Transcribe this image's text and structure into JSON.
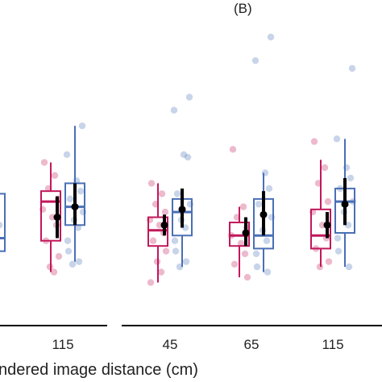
{
  "chart_data": {
    "type": "box",
    "panel_label": "(B)",
    "xlabel": "ndered image distance (cm)",
    "ylim": [
      0,
      1
    ],
    "colors": {
      "pink": "#c2185b",
      "blue": "#4a6fb5",
      "mean": "#000000"
    },
    "tick_labels": [
      "115",
      "45",
      "65",
      "115"
    ],
    "groups": [
      {
        "panel": "left",
        "category": "",
        "boxes": [
          {
            "series": "blue",
            "q1": 0.18,
            "median": 0.23,
            "q3": 0.4,
            "whisker_low": 0.1,
            "whisker_high": 0.4,
            "points": [
              0.2,
              0.28,
              0.35
            ]
          }
        ]
      },
      {
        "panel": "left",
        "category": "115",
        "boxes": [
          {
            "series": "pink",
            "q1": 0.22,
            "median": 0.37,
            "q3": 0.41,
            "whisker_low": 0.1,
            "whisker_high": 0.52,
            "mean": 0.31,
            "mean_low": 0.23,
            "mean_high": 0.39,
            "points": [
              0.52,
              0.47,
              0.42,
              0.38,
              0.34,
              0.31,
              0.28,
              0.22,
              0.16,
              0.12,
              0.1
            ]
          },
          {
            "series": "blue",
            "q1": 0.28,
            "median": 0.35,
            "q3": 0.44,
            "whisker_low": 0.14,
            "whisker_high": 0.66,
            "mean": 0.35,
            "mean_low": 0.28,
            "mean_high": 0.44,
            "points": [
              0.66,
              0.55,
              0.45,
              0.41,
              0.38,
              0.33,
              0.3,
              0.27,
              0.22,
              0.18,
              0.14,
              0.13
            ]
          }
        ]
      },
      {
        "panel": "right",
        "category": "45",
        "boxes": [
          {
            "series": "pink",
            "q1": 0.2,
            "median": 0.26,
            "q3": 0.31,
            "whisker_low": 0.06,
            "whisker_high": 0.44,
            "mean": 0.28,
            "mean_low": 0.24,
            "mean_high": 0.32,
            "points": [
              0.44,
              0.4,
              0.36,
              0.33,
              0.3,
              0.28,
              0.25,
              0.22,
              0.18,
              0.14,
              0.1,
              0.06
            ]
          },
          {
            "series": "blue",
            "q1": 0.24,
            "median": 0.33,
            "q3": 0.38,
            "whisker_low": 0.12,
            "whisker_high": 0.41,
            "mean": 0.34,
            "mean_low": 0.27,
            "mean_high": 0.42,
            "points": [
              0.77,
              0.72,
              0.55,
              0.54,
              0.4,
              0.36,
              0.3,
              0.27,
              0.22,
              0.18,
              0.14,
              0.12
            ]
          }
        ]
      },
      {
        "panel": "right",
        "category": "65",
        "boxes": [
          {
            "series": "pink",
            "q1": 0.2,
            "median": 0.24,
            "q3": 0.29,
            "whisker_low": 0.08,
            "whisker_high": 0.35,
            "mean": 0.25,
            "mean_low": 0.2,
            "mean_high": 0.31,
            "points": [
              0.57,
              0.35,
              0.31,
              0.27,
              0.24,
              0.21,
              0.17,
              0.13,
              0.08
            ]
          },
          {
            "series": "blue",
            "q1": 0.19,
            "median": 0.24,
            "q3": 0.38,
            "whisker_low": 0.1,
            "whisker_high": 0.48,
            "mean": 0.32,
            "mean_low": 0.24,
            "mean_high": 0.41,
            "points": [
              1.0,
              0.91,
              0.48,
              0.42,
              0.36,
              0.31,
              0.26,
              0.22,
              0.17,
              0.12,
              0.1
            ]
          }
        ]
      },
      {
        "panel": "right",
        "category": "115",
        "boxes": [
          {
            "series": "pink",
            "q1": 0.19,
            "median": 0.24,
            "q3": 0.34,
            "whisker_low": 0.12,
            "whisker_high": 0.53,
            "mean": 0.28,
            "mean_low": 0.23,
            "mean_high": 0.33,
            "points": [
              0.6,
              0.5,
              0.44,
              0.37,
              0.33,
              0.28,
              0.23,
              0.19,
              0.14,
              0.12
            ]
          },
          {
            "series": "blue",
            "q1": 0.25,
            "median": 0.37,
            "q3": 0.42,
            "whisker_low": 0.12,
            "whisker_high": 0.61,
            "mean": 0.36,
            "mean_low": 0.28,
            "mean_high": 0.46,
            "points": [
              0.88,
              0.61,
              0.5,
              0.46,
              0.42,
              0.37,
              0.33,
              0.28,
              0.23,
              0.18,
              0.12
            ]
          }
        ]
      }
    ]
  }
}
